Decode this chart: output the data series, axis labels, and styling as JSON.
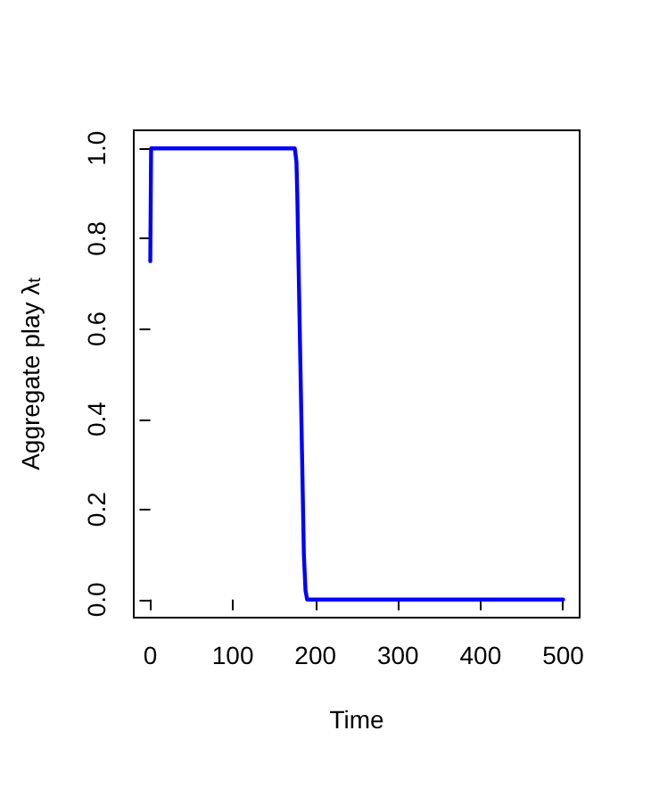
{
  "chart_data": {
    "type": "line",
    "xlabel": "Time",
    "ylabel": "Aggregate play λ$_{t}$",
    "x": [
      0,
      1,
      175,
      177,
      178,
      180,
      182,
      184,
      186,
      188,
      190,
      500
    ],
    "series": [
      {
        "color": "#0000ff",
        "values": [
          0.75,
          1.0,
          1.0,
          0.97,
          0.9,
          0.7,
          0.5,
          0.3,
          0.1,
          0.02,
          0,
          0
        ]
      }
    ],
    "xlim": [
      -20,
      520
    ],
    "xticks": [
      0,
      100,
      200,
      300,
      400,
      500
    ],
    "ylim": [
      -0.04,
      1.04
    ],
    "yticks": [
      {
        "value": 0,
        "label": "0.0"
      },
      {
        "value": 0.2,
        "label": "0.2"
      },
      {
        "value": 0.4,
        "label": "0.4"
      },
      {
        "value": 0.6,
        "label": "0.6"
      },
      {
        "value": 0.8,
        "label": "0.8"
      },
      {
        "value": 1,
        "label": "1.0"
      }
    ],
    "grid": false,
    "marker": "none",
    "line_style": "solid"
  }
}
